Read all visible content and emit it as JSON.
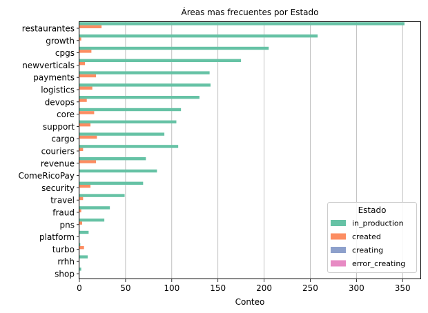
{
  "chart_data": {
    "type": "bar",
    "orientation": "horizontal",
    "title": "Áreas mas frecuentes por Estado",
    "xlabel": "Conteo",
    "ylabel": "",
    "xlim": [
      0,
      370
    ],
    "xticks": [
      0,
      50,
      100,
      150,
      200,
      250,
      300,
      350
    ],
    "grid": "x",
    "legend": {
      "title": "Estado",
      "position": "bottom-right"
    },
    "categories": [
      "restaurantes",
      "growth",
      "cpgs",
      "newverticals",
      "payments",
      "logistics",
      "devops",
      "core",
      "support",
      "cargo",
      "couriers",
      "revenue",
      "ComeRicoPay",
      "security",
      "travel",
      "fraud",
      "pns",
      "platform",
      "turbo",
      "rrhh",
      "shop"
    ],
    "series": [
      {
        "name": "in_production",
        "color": "#66c2a5",
        "values": [
          352,
          258,
          205,
          175,
          141,
          142,
          130,
          110,
          105,
          92,
          107,
          72,
          84,
          69,
          49,
          33,
          27,
          10,
          1,
          9,
          2
        ]
      },
      {
        "name": "created",
        "color": "#fc8d62",
        "values": [
          24,
          2,
          13,
          6,
          18,
          14,
          8,
          16,
          12,
          19,
          4,
          18,
          0,
          12,
          4,
          2,
          3,
          0,
          5,
          0,
          0
        ]
      },
      {
        "name": "creating",
        "color": "#8da0cb",
        "values": [
          0,
          0,
          0,
          0,
          0,
          0,
          0,
          0,
          0,
          0,
          0,
          0,
          0,
          0,
          0,
          0,
          0,
          0,
          0,
          0,
          0
        ]
      },
      {
        "name": "error_creating",
        "color": "#e78ac3",
        "values": [
          0,
          0,
          0,
          0,
          0,
          0,
          0,
          0,
          0,
          0,
          0,
          0,
          0,
          0,
          0,
          0,
          0,
          0,
          0,
          0,
          0
        ]
      }
    ]
  }
}
